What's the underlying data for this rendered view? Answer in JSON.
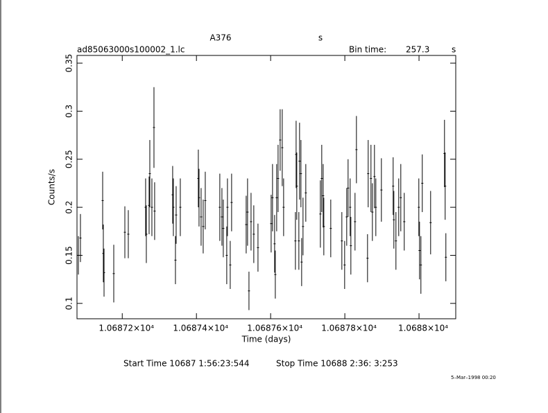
{
  "chart_data": {
    "type": "errorbar",
    "title": "A376",
    "title_unit": "s",
    "filename": "ad85063000s100002_1.lc",
    "bin_time_label": "Bin time:",
    "bin_time": 257.3,
    "bin_time_unit": "s",
    "x_label": "Time (days)",
    "y_label": "Counts/s",
    "start_time": "Start Time 10687  1:56:23:544",
    "stop_time": "Stop Time 10688  2:36: 3:253",
    "timestamp": "5–Mar–1998 00:20",
    "xlim": [
      10687.078,
      10688.099
    ],
    "ylim": [
      0.084,
      0.358
    ],
    "xticks": [
      {
        "value": 10687.2,
        "label": "1.06872×10⁴"
      },
      {
        "value": 10687.4,
        "label": "1.06874×10⁴"
      },
      {
        "value": 10687.6,
        "label": "1.06876×10⁴"
      },
      {
        "value": 10687.8,
        "label": "1.06878×10⁴"
      },
      {
        "value": 10688.0,
        "label": "1.0688×10⁴"
      }
    ],
    "yticks": [
      0.1,
      0.15,
      0.2,
      0.25,
      0.3,
      0.35
    ],
    "color": "#000000",
    "series": [
      {
        "x": [
          10687.0817,
          10687.0873,
          10687.1472,
          10687.149,
          10687.1509,
          10687.1771,
          10687.207,
          10687.2163,
          10687.263,
          10687.2649,
          10687.2724,
          10687.2743,
          10687.2799,
          10687.2855,
          10687.2873,
          10687.3359,
          10687.3378,
          10687.3434,
          10687.3453,
          10687.3565,
          10687.4051,
          10687.407,
          10687.4126,
          10687.4182,
          10687.4238,
          10687.463,
          10687.4687,
          10687.4724,
          10687.4817,
          10687.4836,
          10687.4911,
          10687.4948,
          10687.5341,
          10687.5378,
          10687.5416,
          10687.5472,
          10687.5546,
          10687.5659,
          10687.6014,
          10687.6051,
          10687.6107,
          10687.6126,
          10687.6163,
          10687.6201,
          10687.6257,
          10687.6313,
          10687.635,
          10687.6668,
          10687.6687,
          10687.6705,
          10687.6761,
          10687.678,
          10687.6817,
          10687.6836,
          10687.6873,
          10687.6948,
          10687.7341,
          10687.7378,
          10687.7416,
          10687.7434,
          10687.7621,
          10687.792,
          10687.7995,
          10687.8051,
          10687.8088,
          10687.8144,
          10687.8163,
          10687.8275,
          10687.8313,
          10687.8612,
          10687.863,
          10687.8705,
          10687.8743,
          10687.8799,
          10687.8836,
          10687.8986,
          10687.9303,
          10687.9322,
          10687.9378,
          10687.9453,
          10687.9509,
          10687.9602,
          10687.9995,
          10688.0014,
          10688.0051,
          10688.0088,
          10688.0313,
          10688.0687,
          10688.0705,
          10688.0724
        ],
        "values": [
          0.15,
          0.168,
          0.207,
          0.152,
          0.132,
          0.131,
          0.174,
          0.172,
          0.2,
          0.172,
          0.202,
          0.235,
          0.2,
          0.283,
          0.196,
          0.213,
          0.2,
          0.145,
          0.192,
          0.2,
          0.23,
          0.21,
          0.19,
          0.18,
          0.207,
          0.2,
          0.19,
          0.178,
          0.15,
          0.2,
          0.14,
          0.205,
          0.182,
          0.195,
          0.113,
          0.185,
          0.172,
          0.158,
          0.183,
          0.21,
          0.162,
          0.13,
          0.21,
          0.23,
          0.27,
          0.262,
          0.2,
          0.165,
          0.255,
          0.222,
          0.165,
          0.248,
          0.235,
          0.143,
          0.18,
          0.215,
          0.193,
          0.23,
          0.212,
          0.18,
          0.178,
          0.165,
          0.14,
          0.19,
          0.22,
          0.2,
          0.16,
          0.185,
          0.26,
          0.147,
          0.235,
          0.23,
          0.195,
          0.232,
          0.2,
          0.218,
          0.222,
          0.187,
          0.165,
          0.2,
          0.21,
          0.185,
          0.2,
          0.155,
          0.14,
          0.225,
          0.184,
          0.256,
          0.222,
          0.148
        ],
        "errors": [
          0.02,
          0.025,
          0.03,
          0.03,
          0.025,
          0.03,
          0.027,
          0.025,
          0.03,
          0.03,
          0.03,
          0.035,
          0.03,
          0.042,
          0.03,
          0.03,
          0.03,
          0.025,
          0.03,
          0.03,
          0.03,
          0.03,
          0.03,
          0.028,
          0.03,
          0.035,
          0.03,
          0.03,
          0.03,
          0.03,
          0.025,
          0.03,
          0.03,
          0.035,
          0.02,
          0.03,
          0.03,
          0.025,
          0.03,
          0.035,
          0.03,
          0.025,
          0.035,
          0.035,
          0.032,
          0.04,
          0.03,
          0.03,
          0.035,
          0.035,
          0.03,
          0.04,
          0.035,
          0.025,
          0.03,
          0.03,
          0.035,
          0.035,
          0.033,
          0.03,
          0.03,
          0.03,
          0.025,
          0.03,
          0.03,
          0.03,
          0.03,
          0.03,
          0.035,
          0.025,
          0.035,
          0.035,
          0.03,
          0.033,
          0.03,
          0.033,
          0.03,
          0.03,
          0.03,
          0.03,
          0.035,
          0.03,
          0.03,
          0.03,
          0.03,
          0.03,
          0.033,
          0.035,
          0.035,
          0.025
        ]
      }
    ]
  }
}
